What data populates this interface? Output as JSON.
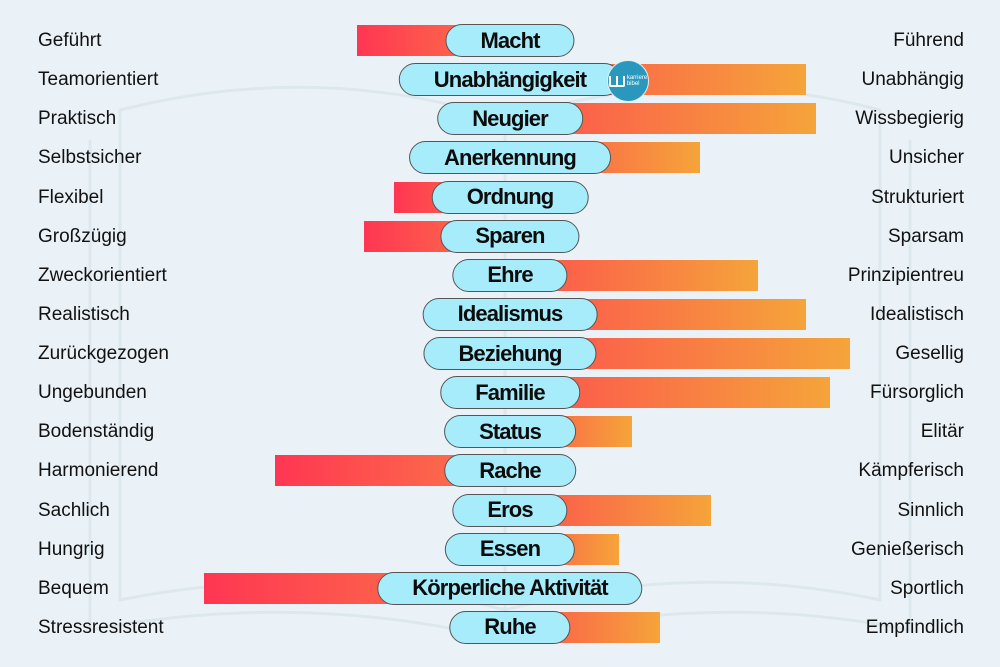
{
  "chart_data": {
    "type": "bar",
    "orientation": "horizontal-diverging",
    "title": "",
    "xlim": [
      -100,
      100
    ],
    "grid": false,
    "colors": {
      "negative_start": "#ff3652",
      "negative_end": "#fb7a48",
      "positive_start": "#fd4f4e",
      "positive_end": "#f5a43a",
      "pill": "#a7ecfb"
    },
    "rows": [
      {
        "category": "Macht",
        "left": "Geführt",
        "right": "Führend",
        "value": -45
      },
      {
        "category": "Unabhängigkeit",
        "left": "Teamorientiert",
        "right": "Unabhängig",
        "value": 87
      },
      {
        "category": "Neugier",
        "left": "Praktisch",
        "right": "Wissbegierig",
        "value": 90
      },
      {
        "category": "Anerkennung",
        "left": "Selbstsicher",
        "right": "Unsicher",
        "value": 56
      },
      {
        "category": "Ordnung",
        "left": "Flexibel",
        "right": "Strukturiert",
        "value": -34
      },
      {
        "category": "Sparen",
        "left": "Großzügig",
        "right": "Sparsam",
        "value": -43
      },
      {
        "category": "Ehre",
        "left": "Zweckorientiert",
        "right": "Prinzipientreu",
        "value": 73
      },
      {
        "category": "Idealismus",
        "left": "Realistisch",
        "right": "Idealistisch",
        "value": 87
      },
      {
        "category": "Beziehung",
        "left": "Zurückgezogen",
        "right": "Gesellig",
        "value": 100
      },
      {
        "category": "Familie",
        "left": "Ungebunden",
        "right": "Fürsorglich",
        "value": 94
      },
      {
        "category": "Status",
        "left": "Bodenständig",
        "right": "Elitär",
        "value": 36
      },
      {
        "category": "Rache",
        "left": "Harmonierend",
        "right": "Kämpferisch",
        "value": -69
      },
      {
        "category": "Eros",
        "left": "Sachlich",
        "right": "Sinnlich",
        "value": 59
      },
      {
        "category": "Essen",
        "left": "Hungrig",
        "right": "Genießerisch",
        "value": 32
      },
      {
        "category": "Körperliche Aktivität",
        "left": "Bequem",
        "right": "Sportlich",
        "value": -90
      },
      {
        "category": "Ruhe",
        "left": "Stressresistent",
        "right": "Empfindlich",
        "value": 44
      }
    ]
  },
  "logo": {
    "text_line1": "karriere",
    "text_line2": "bibel"
  }
}
